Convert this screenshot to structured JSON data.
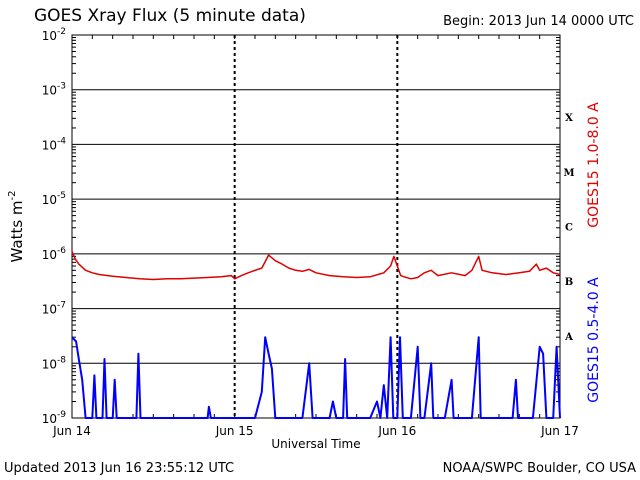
{
  "title": "GOES Xray Flux (5 minute data)",
  "begin": "Begin:  2013 Jun 14 0000 UTC",
  "updated": "Updated 2013 Jun 16 23:55:12 UTC",
  "source": "NOAA/SWPC Boulder, CO USA",
  "colors": {
    "long": "#e00000",
    "short": "#0000ff",
    "axis": "#000000"
  },
  "chart_data": {
    "type": "line",
    "title": "GOES Xray Flux (5 minute data)",
    "xlabel": "Universal Time",
    "ylabel": "Watts m-2",
    "ylabel_text": "Watts m",
    "ylabel_sup": "-2",
    "y_scale": "log",
    "ylim": [
      1e-09,
      0.01
    ],
    "xlim_hours": [
      0,
      72
    ],
    "x_ticks": [
      {
        "hour": 0,
        "label": "Jun 14"
      },
      {
        "hour": 24,
        "label": "Jun 15"
      },
      {
        "hour": 48,
        "label": "Jun 16"
      },
      {
        "hour": 72,
        "label": "Jun 17"
      }
    ],
    "y_ticks": [
      {
        "exp": -9,
        "base": "10",
        "sup": "-9"
      },
      {
        "exp": -8,
        "base": "10",
        "sup": "-8"
      },
      {
        "exp": -7,
        "base": "10",
        "sup": "-7"
      },
      {
        "exp": -6,
        "base": "10",
        "sup": "-6"
      },
      {
        "exp": -5,
        "base": "10",
        "sup": "-5"
      },
      {
        "exp": -4,
        "base": "10",
        "sup": "-4"
      },
      {
        "exp": -3,
        "base": "10",
        "sup": "-3"
      },
      {
        "exp": -2,
        "base": "10",
        "sup": "-2"
      }
    ],
    "flare_classes": [
      {
        "label": "X",
        "exp": -3.5
      },
      {
        "label": "M",
        "exp": -4.5
      },
      {
        "label": "C",
        "exp": -5.5
      },
      {
        "label": "B",
        "exp": -6.5
      },
      {
        "label": "A",
        "exp": -7.5
      }
    ],
    "grid": "horizontal lines at each decade, dashed verticals at day boundaries",
    "series": [
      {
        "name": "GOES15 1.0-8.0 A",
        "color": "#e00000",
        "points": [
          [
            0,
            1.1e-06
          ],
          [
            0.5,
            8e-07
          ],
          [
            1,
            6.5e-07
          ],
          [
            2,
            5e-07
          ],
          [
            3,
            4.5e-07
          ],
          [
            4,
            4.2e-07
          ],
          [
            6,
            3.9e-07
          ],
          [
            8,
            3.7e-07
          ],
          [
            10,
            3.5e-07
          ],
          [
            12,
            3.4e-07
          ],
          [
            14,
            3.5e-07
          ],
          [
            16,
            3.5e-07
          ],
          [
            18,
            3.6e-07
          ],
          [
            20,
            3.7e-07
          ],
          [
            22,
            3.8e-07
          ],
          [
            23.5,
            4e-07
          ],
          [
            24,
            3.5e-07
          ],
          [
            25,
            4e-07
          ],
          [
            26,
            4.5e-07
          ],
          [
            27,
            5e-07
          ],
          [
            28,
            5.5e-07
          ],
          [
            29,
            9.5e-07
          ],
          [
            30,
            7.5e-07
          ],
          [
            31,
            6.5e-07
          ],
          [
            32,
            5.5e-07
          ],
          [
            33,
            5e-07
          ],
          [
            34,
            4.8e-07
          ],
          [
            35,
            5.2e-07
          ],
          [
            36,
            4.5e-07
          ],
          [
            38,
            4e-07
          ],
          [
            40,
            3.8e-07
          ],
          [
            42,
            3.7e-07
          ],
          [
            44,
            3.8e-07
          ],
          [
            46,
            4.5e-07
          ],
          [
            47,
            6e-07
          ],
          [
            47.5,
            9e-07
          ],
          [
            48,
            6e-07
          ],
          [
            48.5,
            4e-07
          ],
          [
            49,
            3.8e-07
          ],
          [
            50,
            3.5e-07
          ],
          [
            51,
            3.7e-07
          ],
          [
            52,
            4.5e-07
          ],
          [
            53,
            5e-07
          ],
          [
            54,
            4e-07
          ],
          [
            56,
            4.5e-07
          ],
          [
            58,
            4e-07
          ],
          [
            59,
            5e-07
          ],
          [
            60,
            9e-07
          ],
          [
            60.5,
            5e-07
          ],
          [
            62,
            4.5e-07
          ],
          [
            64,
            4.2e-07
          ],
          [
            66,
            4.5e-07
          ],
          [
            67.5,
            4.8e-07
          ],
          [
            68.5,
            6.5e-07
          ],
          [
            69,
            5e-07
          ],
          [
            70,
            5.5e-07
          ],
          [
            71,
            4.5e-07
          ],
          [
            72,
            4.2e-07
          ]
        ]
      },
      {
        "name": "GOES15 0.5-4.0 A",
        "color": "#0000ff",
        "points": [
          [
            0,
            3e-08
          ],
          [
            0.6,
            2.5e-08
          ],
          [
            1,
            1.2e-08
          ],
          [
            1.5,
            5e-09
          ],
          [
            2,
            1e-09
          ],
          [
            3,
            1e-09
          ],
          [
            3.3,
            6e-09
          ],
          [
            3.6,
            1e-09
          ],
          [
            4.5,
            1e-09
          ],
          [
            4.8,
            1.2e-08
          ],
          [
            5.1,
            1e-09
          ],
          [
            6,
            1e-09
          ],
          [
            6.3,
            5e-09
          ],
          [
            6.6,
            1e-09
          ],
          [
            8,
            1e-09
          ],
          [
            9.5,
            1e-09
          ],
          [
            9.8,
            1.5e-08
          ],
          [
            10.1,
            1e-09
          ],
          [
            12,
            1e-09
          ],
          [
            18,
            1e-09
          ],
          [
            20,
            1e-09
          ],
          [
            20.2,
            1.6e-09
          ],
          [
            20.5,
            1e-09
          ],
          [
            22,
            1e-09
          ],
          [
            24,
            1e-09
          ],
          [
            27,
            1e-09
          ],
          [
            28,
            3e-09
          ],
          [
            28.5,
            3e-08
          ],
          [
            29,
            1.5e-08
          ],
          [
            29.5,
            8e-09
          ],
          [
            30,
            1e-09
          ],
          [
            32,
            1e-09
          ],
          [
            34,
            1e-09
          ],
          [
            35,
            1e-08
          ],
          [
            35.5,
            1e-09
          ],
          [
            38,
            1e-09
          ],
          [
            38.5,
            2e-09
          ],
          [
            39,
            1e-09
          ],
          [
            40,
            1e-09
          ],
          [
            40.3,
            1.2e-08
          ],
          [
            40.6,
            1e-09
          ],
          [
            44,
            1e-09
          ],
          [
            45,
            2e-09
          ],
          [
            45.5,
            1e-09
          ],
          [
            46,
            4e-09
          ],
          [
            46.5,
            1e-09
          ],
          [
            47,
            3e-08
          ],
          [
            47.4,
            1e-09
          ],
          [
            48,
            1e-09
          ],
          [
            48.4,
            3e-08
          ],
          [
            48.8,
            1e-09
          ],
          [
            50,
            1e-09
          ],
          [
            51,
            2e-08
          ],
          [
            51.4,
            1e-09
          ],
          [
            52,
            1e-09
          ],
          [
            53,
            1e-08
          ],
          [
            53.3,
            1e-09
          ],
          [
            55,
            1e-09
          ],
          [
            56,
            5e-09
          ],
          [
            56.3,
            1e-09
          ],
          [
            59,
            1e-09
          ],
          [
            60,
            3e-08
          ],
          [
            60.3,
            1e-09
          ],
          [
            62,
            1e-09
          ],
          [
            65,
            1e-09
          ],
          [
            65.5,
            5e-09
          ],
          [
            65.8,
            1e-09
          ],
          [
            68,
            1e-09
          ],
          [
            69,
            2e-08
          ],
          [
            69.5,
            1.5e-08
          ],
          [
            70,
            1e-09
          ],
          [
            71,
            1e-09
          ],
          [
            71.5,
            2e-08
          ],
          [
            72,
            1e-09
          ]
        ]
      }
    ]
  }
}
